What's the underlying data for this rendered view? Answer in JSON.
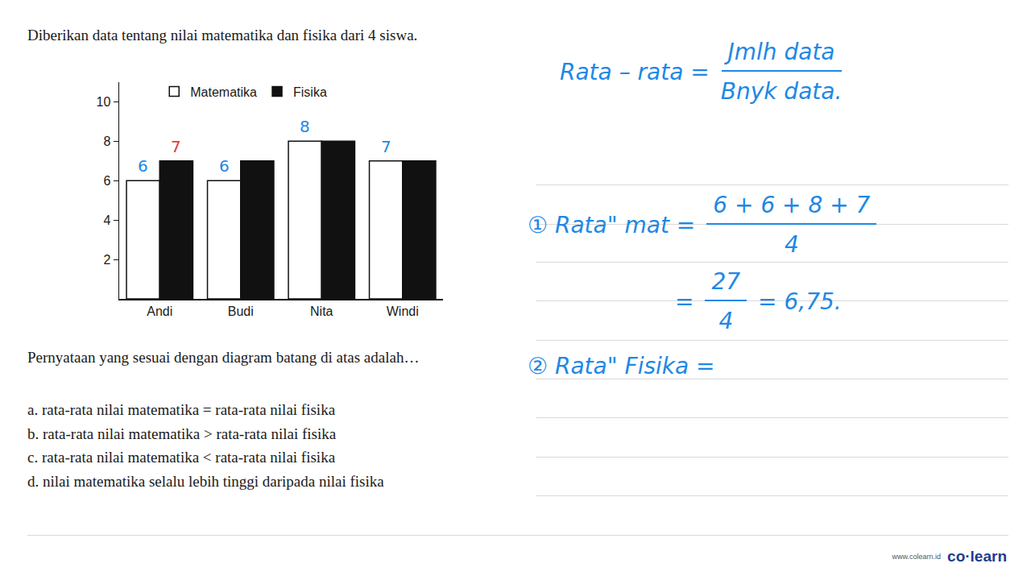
{
  "question": "Diberikan data tentang nilai matematika dan fisika dari 4 siswa.",
  "chart_data": {
    "type": "bar",
    "categories": [
      "Andi",
      "Budi",
      "Nita",
      "Windi"
    ],
    "series": [
      {
        "name": "Matematika",
        "color": "#ffffff",
        "values": [
          6,
          6,
          8,
          7
        ]
      },
      {
        "name": "Fisika",
        "color": "#111111",
        "values": [
          7,
          7,
          8,
          7
        ]
      }
    ],
    "ylim": [
      0,
      11
    ],
    "yticks": [
      2,
      4,
      6,
      8,
      10
    ],
    "grid": false,
    "legend": "top",
    "annotations": [
      {
        "text": "6",
        "category": "Andi",
        "series": "Matematika",
        "color": "#1e88e5"
      },
      {
        "text": "7",
        "category": "Andi",
        "series": "Fisika",
        "color": "#e53935"
      },
      {
        "text": "6",
        "category": "Budi",
        "series": "Matematika",
        "color": "#1e88e5"
      },
      {
        "text": "8",
        "category": "Nita",
        "series": "Matematika",
        "color": "#1e88e5"
      },
      {
        "text": "7",
        "category": "Windi",
        "series": "Matematika",
        "color": "#1e88e5"
      }
    ]
  },
  "prompt": "Pernyataan yang sesuai dengan diagram batang di atas adalah…",
  "options": [
    "a. rata-rata nilai matematika = rata-rata nilai fisika",
    "b. rata-rata nilai matematika > rata-rata nilai fisika",
    "c. rata-rata nilai matematika < rata-rata nilai fisika",
    "d. nilai matematika selalu lebih tinggi daripada nilai fisika"
  ],
  "notes": {
    "formula": {
      "left": "Rata – rata =",
      "numerator": "Jmlh data",
      "denominator": "Bnyk data."
    },
    "step1": {
      "left": "① Rata\" mat =",
      "numerator": "6 + 6 + 8 + 7",
      "denominator": "4"
    },
    "step1_result": {
      "left": "=",
      "numerator": "27",
      "denominator": "4",
      "right": "= 6,75."
    },
    "step2": "② Rata\" Fisika ="
  },
  "footer": {
    "url": "www.colearn.id",
    "brand": "co·learn"
  }
}
